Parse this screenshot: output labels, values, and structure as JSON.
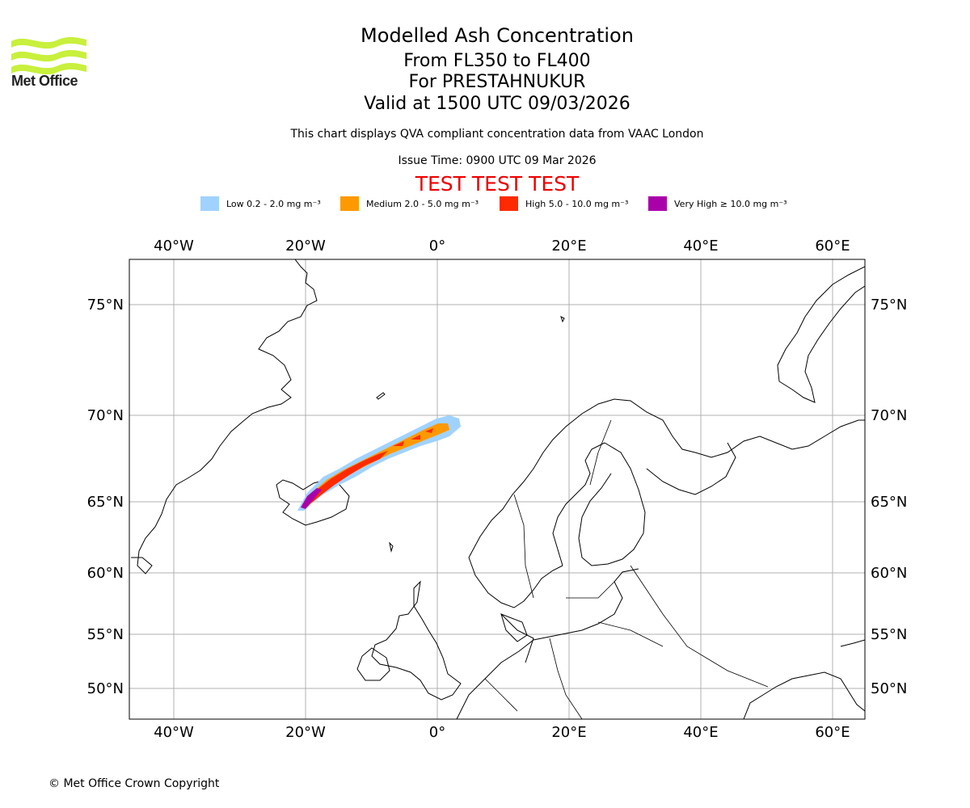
{
  "logo": {
    "text": "Met Office"
  },
  "header": {
    "title": "Modelled Ash Concentration",
    "levels": "From FL350 to FL400",
    "location": "For PRESTAHNUKUR",
    "valid": "Valid at 1500 UTC 09/03/2026",
    "subtitle": "This chart displays QVA compliant concentration data from VAAC London",
    "issue_time": "Issue Time: 0900 UTC 09 Mar 2026",
    "test_banner": "TEST TEST TEST"
  },
  "legend": [
    {
      "label": "Low 0.2 - 2.0 mg m⁻³",
      "color": "#a0d2ff"
    },
    {
      "label": "Medium 2.0 - 5.0 mg m⁻³",
      "color": "#ff9900"
    },
    {
      "label": "High 5.0 - 10.0 mg m⁻³",
      "color": "#ff2a00"
    },
    {
      "label": "Very High  ≥  10.0 mg m⁻³",
      "color": "#aa00aa"
    }
  ],
  "map": {
    "lon_labels": [
      "40°W",
      "20°W",
      "0°",
      "20°E",
      "40°E",
      "60°E"
    ],
    "lat_labels": [
      "75°N",
      "70°N",
      "65°N",
      "60°N",
      "55°N",
      "50°N"
    ],
    "gridlines": true
  },
  "footer": {
    "copyright": "© Met Office Crown Copyright"
  }
}
